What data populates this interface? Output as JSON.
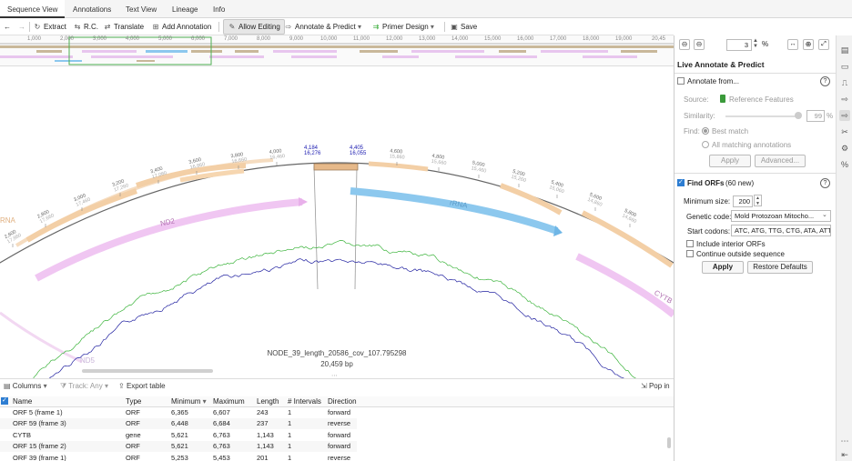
{
  "tabs": [
    "Sequence View",
    "Annotations",
    "Text View",
    "Lineage",
    "Info"
  ],
  "toolbar": {
    "back": "←",
    "forward": "→",
    "extract": "Extract",
    "rc": "R.C.",
    "translate": "Translate",
    "add_annotation": "Add Annotation",
    "allow_editing": "Allow Editing",
    "annotate_predict": "Annotate & Predict",
    "primer_design": "Primer Design",
    "save": "Save"
  },
  "overview_ruler": [
    "1,000",
    "2,000",
    "3,000",
    "4,000",
    "5,000",
    "6,000",
    "7,000",
    "8,000",
    "9,000",
    "10,000",
    "11,000",
    "12,000",
    "13,000",
    "14,000",
    "15,000",
    "16,000",
    "17,000",
    "18,000",
    "19,000",
    "20,45"
  ],
  "zoom": {
    "value": "3",
    "unit": "%"
  },
  "map": {
    "sequence_name": "NODE_39_length_20586_cov_107.795298",
    "sequence_length": "20,459 bp",
    "sel_start_a": "4,184",
    "sel_start_b": "16,276",
    "sel_end_a": "4,405",
    "sel_end_b": "16,055",
    "ticks": [
      {
        "a": "2,600",
        "b": "17,860"
      },
      {
        "a": "2,800",
        "b": "17,660"
      },
      {
        "a": "3,000",
        "b": "17,460"
      },
      {
        "a": "3,200",
        "b": "17,260"
      },
      {
        "a": "3,400",
        "b": "17,060"
      },
      {
        "a": "3,600",
        "b": "16,860"
      },
      {
        "a": "3,800",
        "b": "16,660"
      },
      {
        "a": "4,000",
        "b": "16,460"
      },
      {
        "a": "4,600",
        "b": "15,860"
      },
      {
        "a": "4,800",
        "b": "15,660"
      },
      {
        "a": "5,000",
        "b": "15,460"
      },
      {
        "a": "5,200",
        "b": "15,260"
      },
      {
        "a": "5,400",
        "b": "15,060"
      },
      {
        "a": "5,600",
        "b": "14,860"
      },
      {
        "a": "5,800",
        "b": "14,660"
      }
    ],
    "features": {
      "nd2": "ND2",
      "rrna": "rRNA",
      "cytb": "CYTB",
      "nd5": "ND5",
      "rna_left": "RNA"
    }
  },
  "bottom_toolbar": {
    "columns": "Columns",
    "track": "Track: Any",
    "export": "Export table",
    "popin": "Pop in"
  },
  "table": {
    "headers": [
      "Name",
      "Type",
      "Minimum",
      "Maximum",
      "Length",
      "# Intervals",
      "Direction"
    ],
    "rows": [
      [
        "ORF 5 (frame 1)",
        "ORF",
        "6,365",
        "6,607",
        "243",
        "1",
        "forward"
      ],
      [
        "ORF 59 (frame 3)",
        "ORF",
        "6,448",
        "6,684",
        "237",
        "1",
        "reverse"
      ],
      [
        "CYTB",
        "gene",
        "5,621",
        "6,763",
        "1,143",
        "1",
        "forward"
      ],
      [
        "ORF 15 (frame 2)",
        "ORF",
        "5,621",
        "6,763",
        "1,143",
        "1",
        "forward"
      ],
      [
        "ORF 39 (frame 1)",
        "ORF",
        "5,253",
        "5,453",
        "201",
        "1",
        "reverse"
      ]
    ]
  },
  "panel": {
    "title": "Live Annotate & Predict",
    "annotate_from": "Annotate from...",
    "source_label": "Source:",
    "source_value": "Reference Features",
    "similarity_label": "Similarity:",
    "similarity_value": "99",
    "similarity_unit": "%",
    "find_label": "Find:",
    "best_match": "Best match",
    "all_matching": "All matching annotations",
    "apply": "Apply",
    "advanced": "Advanced...",
    "find_orfs": "Find ORFs",
    "orfs_new": "(60 new)",
    "min_size_label": "Minimum size:",
    "min_size_value": "200",
    "genetic_code_label": "Genetic code:",
    "genetic_code_value": "Mold Protozoan Mitocho...",
    "start_codons_label": "Start codons:",
    "start_codons_value": "ATC, ATG, TTG, CTG, ATA, ATT",
    "include_interior": "Include interior ORFs",
    "continue_outside": "Continue outside sequence",
    "apply2": "Apply",
    "restore": "Restore Defaults"
  },
  "colors": {
    "accent": "#2d7dd2",
    "nd2": "#f0c6f2",
    "rrna": "#8cc8ee",
    "cds": "#f7d6b0",
    "green_plot": "#3cb43c",
    "blue_plot": "#2020a0"
  }
}
